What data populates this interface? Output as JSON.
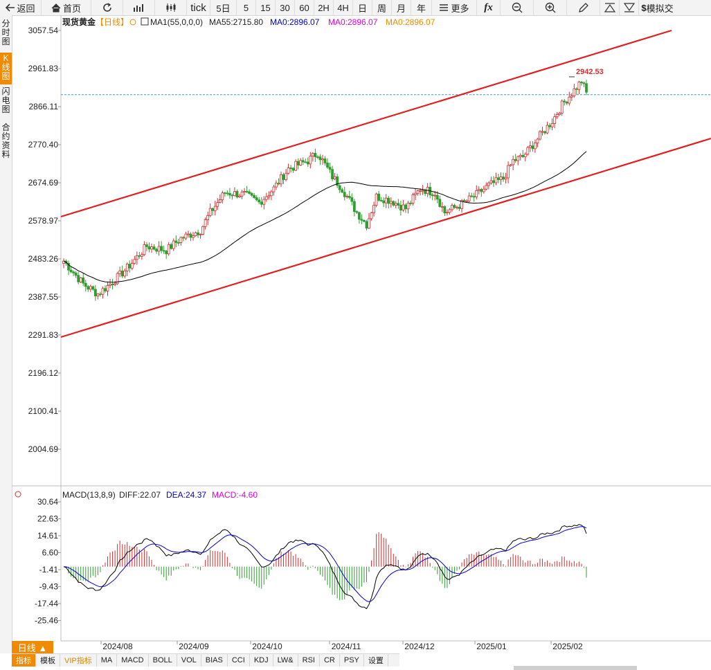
{
  "toolbar": {
    "back": "返回",
    "home": "首页",
    "tick": "tick",
    "periods": [
      "5日",
      "5",
      "15",
      "30",
      "60",
      "2H",
      "4H",
      "日",
      "周",
      "月",
      "年"
    ],
    "more": "更多",
    "fx": "fx",
    "sim": "模拟交"
  },
  "leftnav": [
    "分时图",
    "K线图",
    "闪电图",
    "合约资料"
  ],
  "main": {
    "title": "现货黄金",
    "period_tag": "【日线】",
    "ma1": "MA1(55,0,0,0)",
    "ma55": "MA55:2715.80",
    "ma0a": "MA0:2896.07",
    "ma0b": "MA0:2896.07",
    "ma0c": "MA0:2896.07",
    "high_label": "2942.53",
    "price_ticks": [
      "3057.54",
      "2961.83",
      "2866.11",
      "2770.40",
      "2674.69",
      "2578.97",
      "2483.26",
      "2387.55",
      "2291.83",
      "2196.12",
      "2100.41",
      "2004.69"
    ],
    "current_price": 2896.07
  },
  "macd": {
    "label": "MACD(13,8,9)",
    "diff": "DIFF:22.07",
    "dea": "DEA:24.37",
    "macd": "MACD:-4.60",
    "ticks": [
      "30.64",
      "22.63",
      "14.61",
      "6.60",
      "-1.41",
      "-9.43",
      "-17.44",
      "-25.46"
    ]
  },
  "dates": [
    "2024/08",
    "2024/09",
    "2024/10",
    "2024/11",
    "2024/12",
    "2025/01",
    "2025/02"
  ],
  "colors": {
    "up": "#d32f2f",
    "down": "#2e9e2e",
    "channel": "#e02020",
    "ma": "#000000",
    "accent": "#f08a00",
    "dea": "#0000cc",
    "macd": "#e000e0",
    "ma0": "#f08a00"
  },
  "bottom": {
    "dayline": "日线 ▲",
    "tabs": [
      "指标",
      "模板",
      "VIP指标",
      "MA",
      "MACD",
      "BOLL",
      "VOL",
      "BIAS",
      "CCI",
      "KDJ",
      "LW&",
      "RSI",
      "CR",
      "PSY",
      "设置"
    ]
  }
}
